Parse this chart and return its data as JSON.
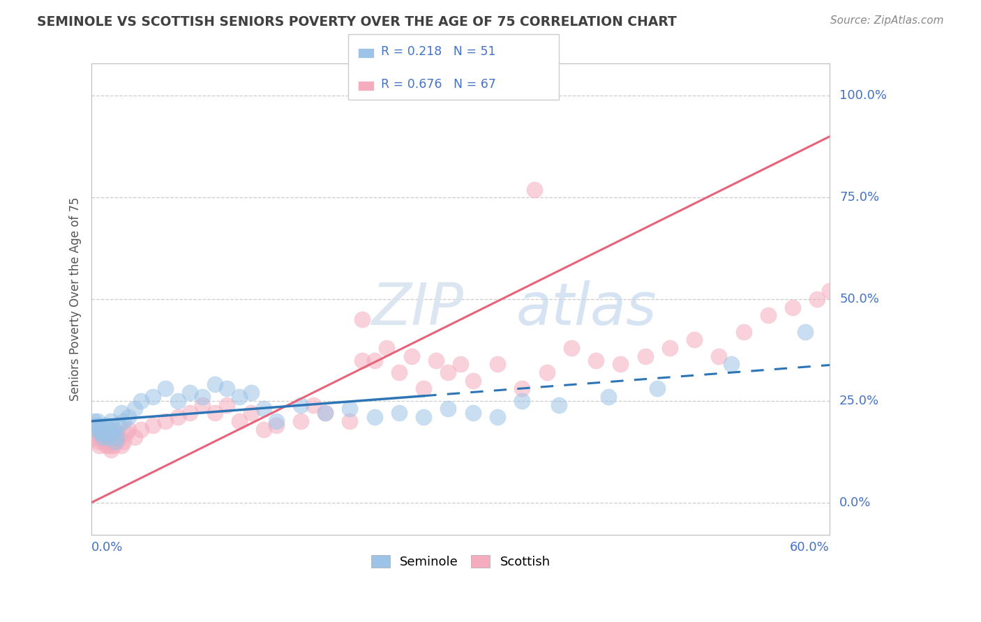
{
  "title": "SEMINOLE VS SCOTTISH SENIORS POVERTY OVER THE AGE OF 75 CORRELATION CHART",
  "source": "Source: ZipAtlas.com",
  "ylabel": "Seniors Poverty Over the Age of 75",
  "ytick_labels": [
    "0.0%",
    "25.0%",
    "50.0%",
    "75.0%",
    "100.0%"
  ],
  "ytick_values": [
    0,
    25,
    50,
    75,
    100
  ],
  "xmin": 0,
  "xmax": 60,
  "ymin": -8,
  "ymax": 108,
  "legend_r1": "R = 0.218",
  "legend_n1": "N = 51",
  "legend_r2": "R = 0.676",
  "legend_n2": "N = 67",
  "seminole_color": "#9DC3E6",
  "scottish_color": "#F4ACBE",
  "seminole_line_color": "#2E75B6",
  "scottish_line_color": "#E8637A",
  "grid_color": "#CCCCCC",
  "title_color": "#404040",
  "label_color": "#4472C4",
  "source_color": "#888888",
  "seminole_x": [
    0.2,
    0.3,
    0.4,
    0.5,
    0.6,
    0.7,
    0.8,
    0.9,
    1.0,
    1.1,
    1.2,
    1.3,
    1.4,
    1.5,
    1.6,
    1.7,
    1.8,
    1.9,
    2.0,
    2.2,
    2.4,
    2.6,
    3.0,
    3.5,
    4.0,
    5.0,
    6.0,
    7.0,
    8.0,
    9.0,
    10.0,
    11.0,
    12.0,
    13.0,
    14.0,
    15.0,
    17.0,
    19.0,
    21.0,
    23.0,
    25.0,
    27.0,
    29.0,
    31.0,
    33.0,
    35.0,
    38.0,
    42.0,
    46.0,
    52.0,
    58.0
  ],
  "seminole_y": [
    20,
    19,
    18,
    20,
    19,
    17,
    18,
    16,
    18,
    17,
    19,
    16,
    17,
    18,
    20,
    17,
    18,
    15,
    16,
    19,
    22,
    20,
    21,
    23,
    25,
    26,
    28,
    25,
    27,
    26,
    29,
    28,
    26,
    27,
    23,
    20,
    24,
    22,
    23,
    21,
    22,
    21,
    23,
    22,
    21,
    25,
    24,
    26,
    28,
    34,
    42
  ],
  "scottish_x": [
    0.2,
    0.3,
    0.5,
    0.6,
    0.8,
    0.9,
    1.0,
    1.1,
    1.2,
    1.3,
    1.4,
    1.5,
    1.6,
    1.7,
    1.8,
    1.9,
    2.0,
    2.1,
    2.2,
    2.4,
    2.6,
    2.8,
    3.0,
    3.5,
    4.0,
    5.0,
    6.0,
    7.0,
    8.0,
    9.0,
    10.0,
    11.0,
    12.0,
    13.0,
    14.0,
    15.0,
    17.0,
    19.0,
    21.0,
    23.0,
    25.0,
    27.0,
    29.0,
    31.0,
    33.0,
    35.0,
    37.0,
    39.0,
    41.0,
    43.0,
    45.0,
    47.0,
    49.0,
    51.0,
    53.0,
    55.0,
    57.0,
    59.0,
    60.0,
    36.0,
    22.0,
    18.0,
    22.0,
    24.0,
    26.0,
    28.0,
    30.0
  ],
  "scottish_y": [
    17,
    16,
    15,
    14,
    16,
    15,
    17,
    15,
    14,
    15,
    16,
    14,
    13,
    15,
    14,
    16,
    17,
    15,
    16,
    14,
    15,
    17,
    18,
    16,
    18,
    19,
    20,
    21,
    22,
    24,
    22,
    24,
    20,
    22,
    18,
    19,
    20,
    22,
    20,
    35,
    32,
    28,
    32,
    30,
    34,
    28,
    32,
    38,
    35,
    34,
    36,
    38,
    40,
    36,
    42,
    46,
    48,
    50,
    52,
    77,
    45,
    24,
    35,
    38,
    36,
    35,
    34
  ]
}
